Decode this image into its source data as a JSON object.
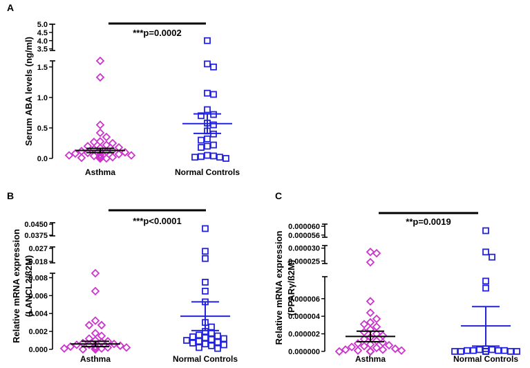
{
  "colors": {
    "asthma": "#cc33cc",
    "controls": "#2222dd",
    "bracket": "#000000"
  },
  "chart_data": [
    {
      "panel": "A",
      "type": "scatter",
      "ylabel": "Serum ABA levels (ng/ml)",
      "categories": [
        "Asthma",
        "Normal Controls"
      ],
      "significance": "***p=0.0002",
      "axis_break": true,
      "ylim_lower": [
        0,
        1.6
      ],
      "lower_ticks": [
        "0.0",
        "0.5",
        "1.0",
        "1.5"
      ],
      "lower_tick_values": [
        0,
        0.5,
        1.0,
        1.5
      ],
      "ylim_upper": [
        3.4,
        5.0
      ],
      "upper_ticks": [
        "3.5",
        "4.0",
        "4.5",
        "5.0"
      ],
      "upper_tick_values": [
        3.5,
        4.0,
        4.5,
        5.0
      ],
      "series": [
        {
          "name": "Asthma",
          "marker": "diamond",
          "mean": 0.13,
          "sem_upper": 0.165,
          "sem_lower": 0.095,
          "values": [
            1.6,
            1.33,
            0.55,
            0.42,
            0.35,
            0.28,
            0.27,
            0.25,
            0.22,
            0.2,
            0.18,
            0.17,
            0.15,
            0.13,
            0.12,
            0.11,
            0.1,
            0.09,
            0.08,
            0.07,
            0.06,
            0.05,
            0.05,
            0.04,
            0.03,
            0.03,
            0.02,
            0.02,
            0.01,
            0.01,
            0.0,
            0.0,
            0.0,
            0.0,
            0.0,
            0.0
          ]
        },
        {
          "name": "Normal Controls",
          "marker": "square",
          "mean": 0.57,
          "sem_upper": 0.73,
          "sem_lower": 0.41,
          "values": [
            4.0,
            1.55,
            1.5,
            1.07,
            1.05,
            0.8,
            0.72,
            0.7,
            0.58,
            0.55,
            0.45,
            0.4,
            0.32,
            0.3,
            0.22,
            0.2,
            0.18,
            0.05,
            0.04,
            0.03,
            0.02,
            0.02,
            0.0
          ]
        }
      ]
    },
    {
      "panel": "B",
      "type": "scatter",
      "ylabel": "Relative mRNA expression",
      "ylabel2": "(LANCL2/ß2M)",
      "categories": [
        "Asthma",
        "Normal Controls"
      ],
      "significance": "***p<0.0001",
      "axis_break": true,
      "ylim_lower": [
        0,
        0.0085
      ],
      "lower_ticks": [
        "0.000",
        "0.002",
        "0.004",
        "0.006",
        "0.008"
      ],
      "lower_tick_values": [
        0,
        0.002,
        0.004,
        0.006,
        0.008
      ],
      "ylim_mid": [
        0.017,
        0.028
      ],
      "mid_ticks": [
        "0.018",
        "0.027"
      ],
      "mid_tick_values": [
        0.018,
        0.027
      ],
      "ylim_upper": [
        0.037,
        0.046
      ],
      "upper_ticks": [
        "0.0375",
        "0.0450"
      ],
      "upper_tick_values": [
        0.0375,
        0.045
      ],
      "series": [
        {
          "name": "Asthma",
          "marker": "diamond",
          "mean": 0.0006,
          "sem_upper": 0.0009,
          "sem_lower": 0.0003,
          "values": [
            0.0085,
            0.0065,
            0.0032,
            0.0027,
            0.0027,
            0.0018,
            0.0015,
            0.0012,
            0.001,
            0.0009,
            0.0008,
            0.0007,
            0.0006,
            0.0005,
            0.0005,
            0.0004,
            0.0003,
            0.0003,
            0.0002,
            0.0002,
            0.0001,
            0.0001,
            0.0001,
            0.0,
            0.0,
            0.0,
            0.0,
            0.0
          ]
        },
        {
          "name": "Normal Controls",
          "marker": "square",
          "mean": 0.0037,
          "sem_upper": 0.0053,
          "sem_lower": 0.0021,
          "values": [
            0.042,
            0.025,
            0.02,
            0.0075,
            0.0065,
            0.0053,
            0.003,
            0.0025,
            0.002,
            0.0018,
            0.0016,
            0.0015,
            0.0014,
            0.0013,
            0.0012,
            0.0011,
            0.001,
            0.0009,
            0.0008,
            0.0007,
            0.0006,
            0.0005,
            0.0004,
            0.0002,
            0.0001
          ]
        }
      ]
    },
    {
      "panel": "C",
      "type": "scatter",
      "ylabel": "Relative mRNA expression",
      "ylabel2": "(PPARγ/ß2M)",
      "categories": [
        "Asthma",
        "Normal Controls"
      ],
      "significance": "**p=0.0019",
      "axis_break": true,
      "ylim_lower": [
        0,
        8.5e-06
      ],
      "lower_ticks": [
        "0.000000",
        "0.000002",
        "0.000004",
        "0.000006"
      ],
      "lower_tick_values": [
        0,
        2e-06,
        4e-06,
        6e-06
      ],
      "ylim_mid": [
        2.4e-05,
        3.1e-05
      ],
      "mid_ticks": [
        "0.000025",
        "0.000030"
      ],
      "mid_tick_values": [
        2.5e-05,
        3e-05
      ],
      "ylim_upper": [
        5.5e-05,
        6.1e-05
      ],
      "upper_ticks": [
        "0.000056",
        "0.000060"
      ],
      "upper_tick_values": [
        5.6e-05,
        6e-05
      ],
      "series": [
        {
          "name": "Asthma",
          "marker": "diamond",
          "mean": 1.7e-06,
          "sem_upper": 2.3e-06,
          "sem_lower": 1.1e-06,
          "values": [
            2.85e-05,
            2.8e-05,
            2.45e-05,
            5.7e-06,
            4.4e-06,
            3.7e-06,
            3.3e-06,
            3.1e-06,
            2.8e-06,
            2.5e-06,
            2.2e-06,
            2e-06,
            1.8e-06,
            1.6e-06,
            1.4e-06,
            1.2e-06,
            1e-06,
            9e-07,
            8e-07,
            7e-07,
            6e-07,
            5e-07,
            4e-07,
            3e-07,
            2e-07,
            2e-07,
            1e-07,
            1e-07,
            0.0,
            0.0,
            0.0,
            0.0,
            0.0,
            0.0
          ]
        },
        {
          "name": "Normal Controls",
          "marker": "square",
          "mean": 2.9e-06,
          "sem_upper": 5.1e-06,
          "sem_lower": 6e-07,
          "values": [
            5.8e-05,
            2.85e-05,
            2.65e-05,
            8e-06,
            7.2e-06,
            3e-07,
            2e-07,
            2e-07,
            1e-07,
            1e-07,
            1e-07,
            1e-07,
            0.0,
            0.0,
            0.0,
            0.0,
            0.0,
            0.0,
            0.0,
            0.0,
            0.0
          ]
        }
      ]
    }
  ]
}
